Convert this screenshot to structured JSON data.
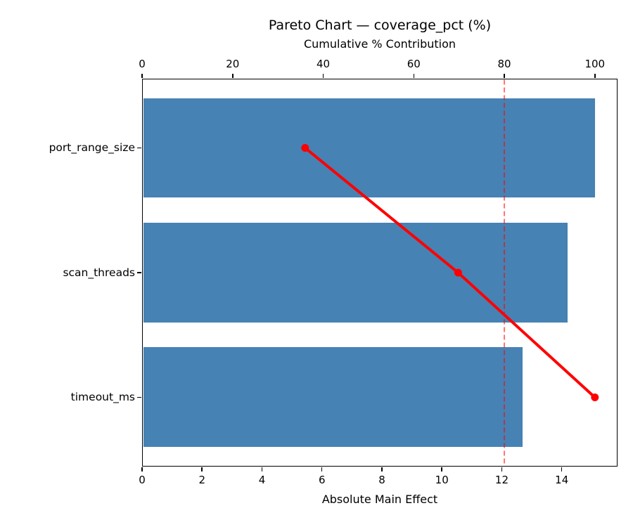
{
  "chart_data": {
    "type": "bar",
    "subtype": "pareto",
    "orientation": "horizontal",
    "title": "Pareto Chart — coverage_pct (%)",
    "categories": [
      "port_range_size",
      "scan_threads",
      "timeout_ms"
    ],
    "bar_values": [
      15.1,
      14.2,
      12.7
    ],
    "bar_axis": {
      "label": "Absolute Main Effect",
      "ticks": [
        0,
        2,
        4,
        6,
        8,
        10,
        12,
        14
      ],
      "lim": [
        0,
        15.86
      ],
      "position": "bottom"
    },
    "cumulative_axis": {
      "label": "Cumulative % Contribution",
      "ticks": [
        0,
        20,
        40,
        60,
        80,
        100
      ],
      "lim": [
        0,
        105
      ],
      "position": "top"
    },
    "cumulative_values": [
      36.0,
      69.8,
      100.0
    ],
    "threshold_pct": 80,
    "grid": false,
    "legend": null,
    "colors": {
      "bar": "#4682b4",
      "cumulative_line": "#ff0000",
      "threshold_line": "rgba(255,0,0,0.55)",
      "spine": "#000000",
      "text": "#000000"
    }
  }
}
